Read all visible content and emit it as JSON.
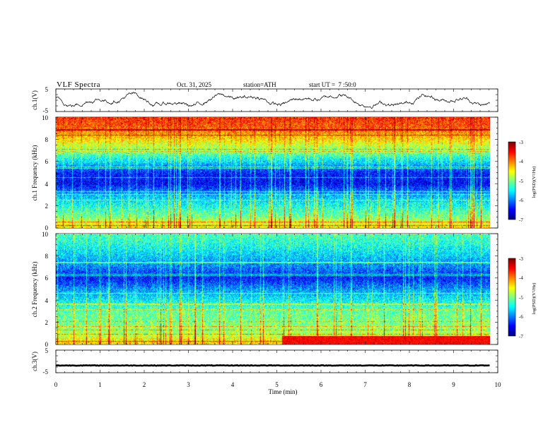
{
  "header": {
    "title": "VLF Spectra",
    "date": "Oct. 31, 2025",
    "station": "station=ATH",
    "start": "start UT =  7 :50:0"
  },
  "chart_data": [
    {
      "type": "line",
      "name": "ch1-waveform",
      "ylabel": "ch.1(V)",
      "ylim": [
        -5,
        5
      ],
      "yticks": [
        "5",
        "-5"
      ],
      "xlim": [
        0,
        10
      ]
    },
    {
      "type": "heatmap",
      "name": "ch1-spectrogram",
      "ylabel": "ch.1 Frequency (kHz)",
      "ylim": [
        0,
        10
      ],
      "yticks": [
        "0",
        "2",
        "4",
        "6",
        "8",
        "10"
      ],
      "xlim": [
        0,
        9.8
      ],
      "colorbar": {
        "label": "log(PSD)(V²/Hz)",
        "range": [
          -7,
          -3
        ],
        "ticks": [
          "-3",
          "-4",
          "-5",
          "-6",
          "-7"
        ]
      },
      "profile_log_psd": [
        {
          "f": 0,
          "v": -4.5
        },
        {
          "f": 0.5,
          "v": -4.6
        },
        {
          "f": 1,
          "v": -5.0
        },
        {
          "f": 2,
          "v": -5.4
        },
        {
          "f": 3,
          "v": -5.8
        },
        {
          "f": 4,
          "v": -6.5
        },
        {
          "f": 5,
          "v": -6.4
        },
        {
          "f": 6,
          "v": -5.6
        },
        {
          "f": 7,
          "v": -5.0
        },
        {
          "f": 8,
          "v": -4.4
        },
        {
          "f": 9,
          "v": -3.9
        },
        {
          "f": 10,
          "v": -3.7
        }
      ]
    },
    {
      "type": "heatmap",
      "name": "ch2-spectrogram",
      "ylabel": "ch.2 Frequency (kHz)",
      "ylim": [
        0,
        10
      ],
      "yticks": [
        "0",
        "2",
        "4",
        "6",
        "8",
        "10"
      ],
      "xlim": [
        0,
        9.8
      ],
      "colorbar": {
        "label": "log(PSD)(V²/Hz)",
        "range": [
          -7,
          -3
        ],
        "ticks": [
          "-3",
          "-4",
          "-5",
          "-6",
          "-7"
        ]
      },
      "profile_log_psd": [
        {
          "f": 0,
          "v": -4.2
        },
        {
          "f": 0.5,
          "v": -4.5
        },
        {
          "f": 1,
          "v": -4.8
        },
        {
          "f": 2,
          "v": -5.0
        },
        {
          "f": 3,
          "v": -5.1
        },
        {
          "f": 4,
          "v": -5.5
        },
        {
          "f": 5,
          "v": -5.9
        },
        {
          "f": 6,
          "v": -6.4
        },
        {
          "f": 7,
          "v": -6.0
        },
        {
          "f": 8,
          "v": -5.7
        },
        {
          "f": 9,
          "v": -5.4
        },
        {
          "f": 10,
          "v": -5.2
        }
      ]
    },
    {
      "type": "line",
      "name": "ch3-waveform",
      "ylabel": "ch.3(V)",
      "ylim": [
        -5,
        5
      ],
      "yticks": [
        "5",
        "-5"
      ],
      "xlim": [
        0,
        10
      ],
      "level": -1.8
    }
  ],
  "xaxis": {
    "label": "Time (min)",
    "ticks": [
      "0",
      "1",
      "2",
      "3",
      "4",
      "5",
      "6",
      "7",
      "8",
      "9",
      "10"
    ],
    "range": [
      0,
      10
    ]
  }
}
